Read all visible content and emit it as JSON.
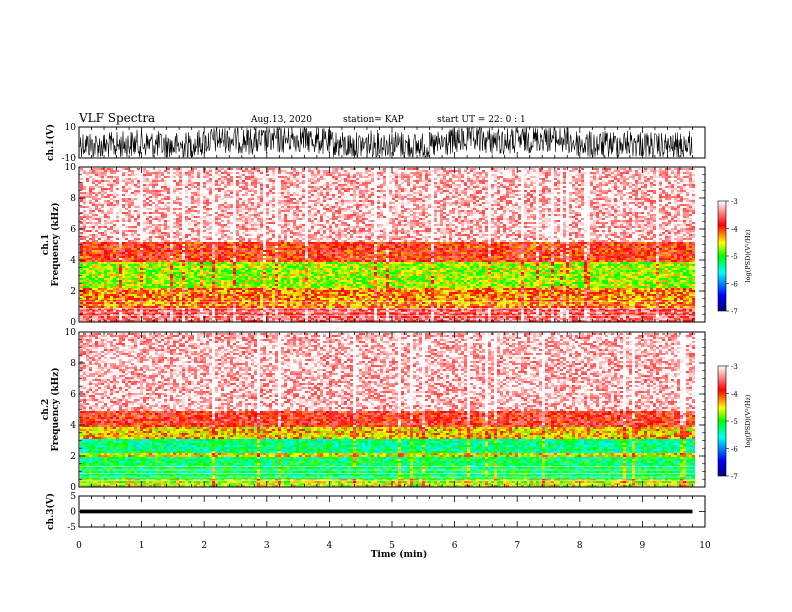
{
  "header": {
    "title": "VLF Spectra",
    "date": "Aug.13, 2020",
    "station": "station= KAP",
    "start": "start  UT =  22: 0  : 1"
  },
  "chart_data": [
    {
      "type": "line",
      "panel": "ch1-waveform",
      "ylabel": "ch.1(V)",
      "ylim": [
        -10,
        10
      ],
      "yticks": [
        "10",
        "-10"
      ],
      "xlim": [
        0,
        10
      ],
      "data_end_min": 9.8,
      "note": "dense saturated waveform"
    },
    {
      "type": "heatmap",
      "panel": "ch1-spectrogram",
      "ylabel": "ch.1\nFrequency  (kHz)",
      "ylim": [
        0,
        10
      ],
      "yticks": [
        "0",
        "2",
        "4",
        "6",
        "8",
        "10"
      ],
      "xlim": [
        0,
        10
      ],
      "data_end_min": 9.8,
      "bands_khz": [
        {
          "from": 0.0,
          "to": 1.0,
          "level": -3.6
        },
        {
          "from": 1.0,
          "to": 2.2,
          "level": -4.2
        },
        {
          "from": 2.2,
          "to": 4.0,
          "level": -4.7
        },
        {
          "from": 4.0,
          "to": 5.2,
          "level": -3.9
        },
        {
          "from": 5.2,
          "to": 10.0,
          "level": -3.2
        }
      ],
      "colorbar": {
        "min": -7,
        "max": -3,
        "ticks": [
          "-3",
          "-4",
          "-5",
          "-6",
          "-7"
        ],
        "label": "log(PSD)(V²/Hz)"
      }
    },
    {
      "type": "heatmap",
      "panel": "ch2-spectrogram",
      "ylabel": "ch.2\nFrequency  (kHz)",
      "ylim": [
        0,
        10
      ],
      "yticks": [
        "0",
        "2",
        "4",
        "6",
        "8",
        "10"
      ],
      "xlim": [
        0,
        10
      ],
      "data_end_min": 9.8,
      "bands_khz": [
        {
          "from": 0.0,
          "to": 0.6,
          "level": -4.6
        },
        {
          "from": 0.6,
          "to": 2.0,
          "level": -5.2
        },
        {
          "from": 2.0,
          "to": 2.2,
          "level": -4.5
        },
        {
          "from": 2.2,
          "to": 3.2,
          "level": -5.3
        },
        {
          "from": 3.2,
          "to": 4.0,
          "level": -4.4
        },
        {
          "from": 4.0,
          "to": 5.0,
          "level": -3.8
        },
        {
          "from": 5.0,
          "to": 10.0,
          "level": -3.2
        }
      ],
      "colorbar": {
        "min": -7,
        "max": -3,
        "ticks": [
          "-3",
          "-4",
          "-5",
          "-6",
          "-7"
        ],
        "label": "log(PSD)(V²/Hz)"
      }
    },
    {
      "type": "line",
      "panel": "ch3-waveform",
      "ylabel": "ch.3(V)",
      "ylim": [
        -5,
        5
      ],
      "yticks": [
        "5",
        "0",
        "-5"
      ],
      "xlim": [
        0,
        10
      ],
      "data_end_min": 9.8,
      "band_volts": [
        -0.6,
        0.6
      ]
    }
  ],
  "xaxis": {
    "label": "Time  (min)",
    "ticks": [
      "0",
      "1",
      "2",
      "3",
      "4",
      "5",
      "6",
      "7",
      "8",
      "9",
      "10"
    ]
  },
  "colors": {
    "cmap": [
      "#00007f",
      "#0000ff",
      "#00ffff",
      "#00ff00",
      "#ffff00",
      "#ff0000",
      "#ffffff"
    ]
  }
}
